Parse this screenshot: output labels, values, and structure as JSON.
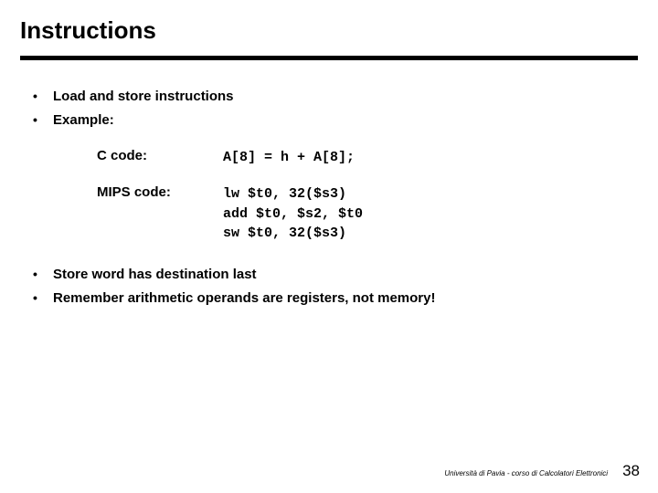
{
  "title": "Instructions",
  "bullets_top": [
    "Load and store instructions",
    "Example:"
  ],
  "code": {
    "c_label": "C code:",
    "c_content": "A[8] = h + A[8];",
    "mips_label": "MIPS code:",
    "mips_content": "lw $t0, 32($s3)\nadd $t0, $s2, $t0\nsw $t0, 32($s3)"
  },
  "bullets_bottom": [
    "Store word has destination last",
    "Remember arithmetic operands are registers, not memory!"
  ],
  "footer": {
    "text": "Università di Pavia  - corso di Calcolatori Elettronici",
    "page": "38"
  },
  "colors": {
    "background": "#ffffff",
    "text": "#000000",
    "rule": "#000000"
  },
  "typography": {
    "title_fontsize": 26,
    "body_fontsize": 15,
    "code_font": "Courier New",
    "footer_text_fontsize": 8,
    "footer_num_fontsize": 17
  }
}
